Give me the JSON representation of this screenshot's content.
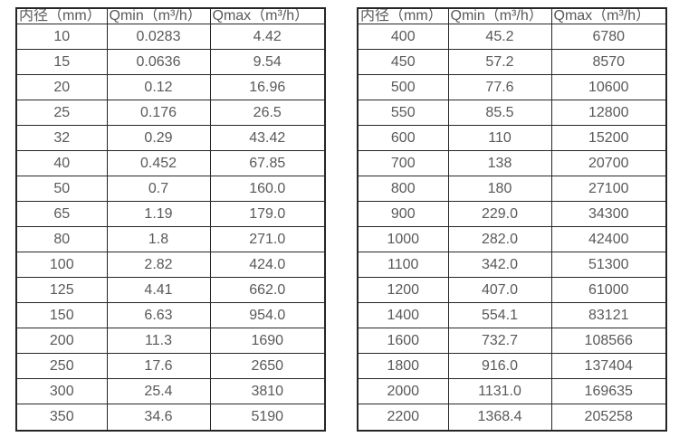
{
  "colors": {
    "background": "#ffffff",
    "border": "#262626",
    "text": "#595959"
  },
  "tables": [
    {
      "name": "flow-table-small-diameters",
      "headers": [
        "内径（mm）",
        "Qmin（m³/h）",
        "Qmax（m³/h）"
      ],
      "rows": [
        [
          "10",
          "0.0283",
          "4.42"
        ],
        [
          "15",
          "0.0636",
          "9.54"
        ],
        [
          "20",
          "0.12",
          "16.96"
        ],
        [
          "25",
          "0.176",
          "26.5"
        ],
        [
          "32",
          "0.29",
          "43.42"
        ],
        [
          "40",
          "0.452",
          "67.85"
        ],
        [
          "50",
          "0.7",
          "160.0"
        ],
        [
          "65",
          "1.19",
          "179.0"
        ],
        [
          "80",
          "1.8",
          "271.0"
        ],
        [
          "100",
          "2.82",
          "424.0"
        ],
        [
          "125",
          "4.41",
          "662.0"
        ],
        [
          "150",
          "6.63",
          "954.0"
        ],
        [
          "200",
          "11.3",
          "1690"
        ],
        [
          "250",
          "17.6",
          "2650"
        ],
        [
          "300",
          "25.4",
          "3810"
        ],
        [
          "350",
          "34.6",
          "5190"
        ]
      ]
    },
    {
      "name": "flow-table-large-diameters",
      "headers": [
        "内径（mm）",
        "Qmin（m³/h）",
        "Qmax（m³/h）"
      ],
      "rows": [
        [
          "400",
          "45.2",
          "6780"
        ],
        [
          "450",
          "57.2",
          "8570"
        ],
        [
          "500",
          "77.6",
          "10600"
        ],
        [
          "550",
          "85.5",
          "12800"
        ],
        [
          "600",
          "110",
          "15200"
        ],
        [
          "700",
          "138",
          "20700"
        ],
        [
          "800",
          "180",
          "27100"
        ],
        [
          "900",
          "229.0",
          "34300"
        ],
        [
          "1000",
          "282.0",
          "42400"
        ],
        [
          "1100",
          "342.0",
          "51300"
        ],
        [
          "1200",
          "407.0",
          "61000"
        ],
        [
          "1400",
          "554.1",
          "83121"
        ],
        [
          "1600",
          "732.7",
          "108566"
        ],
        [
          "1800",
          "916.0",
          "137404"
        ],
        [
          "2000",
          "1131.0",
          "169635"
        ],
        [
          "2200",
          "1368.4",
          "205258"
        ]
      ]
    }
  ]
}
